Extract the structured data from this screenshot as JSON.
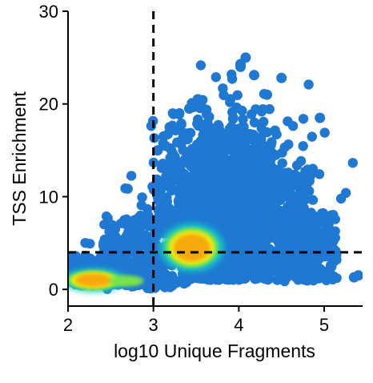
{
  "chart_data": {
    "type": "scatter",
    "title": "",
    "xlabel": "log10 Unique Fragments",
    "ylabel": "TSS Enrichment",
    "xlim": [
      2,
      5.45
    ],
    "ylim": [
      -1.8,
      30
    ],
    "xticks": [
      2,
      3,
      4,
      5
    ],
    "yticks": [
      0,
      10,
      20,
      30
    ],
    "xtick_labels": [
      "2",
      "3",
      "4",
      "5"
    ],
    "ytick_labels": [
      "0",
      "10",
      "20",
      "30"
    ],
    "grid": false,
    "legend": "none",
    "thresholds": {
      "x": 3,
      "y": 4
    },
    "density_colormap": [
      "#1f78d1",
      "#16c7c7",
      "#79e34b",
      "#f5f20c",
      "#f7a80a"
    ],
    "scatter_color": "#1f78d1",
    "dense_clusters": [
      {
        "x_center": 2.3,
        "y_center": 1.0,
        "x_range": [
          2.0,
          2.75
        ],
        "y_range": [
          -0.3,
          2.2
        ],
        "peak": "high"
      },
      {
        "x_center": 3.45,
        "y_center": 4.5,
        "x_range": [
          3.0,
          3.75
        ],
        "y_range": [
          2.0,
          7.2
        ],
        "peak": "high"
      }
    ],
    "outlier_points": [
      [
        4.08,
        25.0
      ],
      [
        4.02,
        24.3
      ],
      [
        4.5,
        22.8
      ],
      [
        4.18,
        23.1
      ],
      [
        4.33,
        21.0
      ],
      [
        3.9,
        20.5
      ],
      [
        3.52,
        20.5
      ],
      [
        3.42,
        19.5
      ],
      [
        3.3,
        18.9
      ],
      [
        3.65,
        18.6
      ],
      [
        3.3,
        17.5
      ],
      [
        3.12,
        16.5
      ],
      [
        3.4,
        16.2
      ],
      [
        3.35,
        16.8
      ],
      [
        3.2,
        15.2
      ],
      [
        3.05,
        15.0
      ],
      [
        3.15,
        12.2
      ],
      [
        3.08,
        11.5
      ],
      [
        3.05,
        10.0
      ],
      [
        4.95,
        18.5
      ],
      [
        5.35,
        1.3
      ],
      [
        5.4,
        1.5
      ],
      [
        4.95,
        6.0
      ],
      [
        4.02,
        24.0
      ],
      [
        3.6,
        17.2
      ]
    ]
  }
}
